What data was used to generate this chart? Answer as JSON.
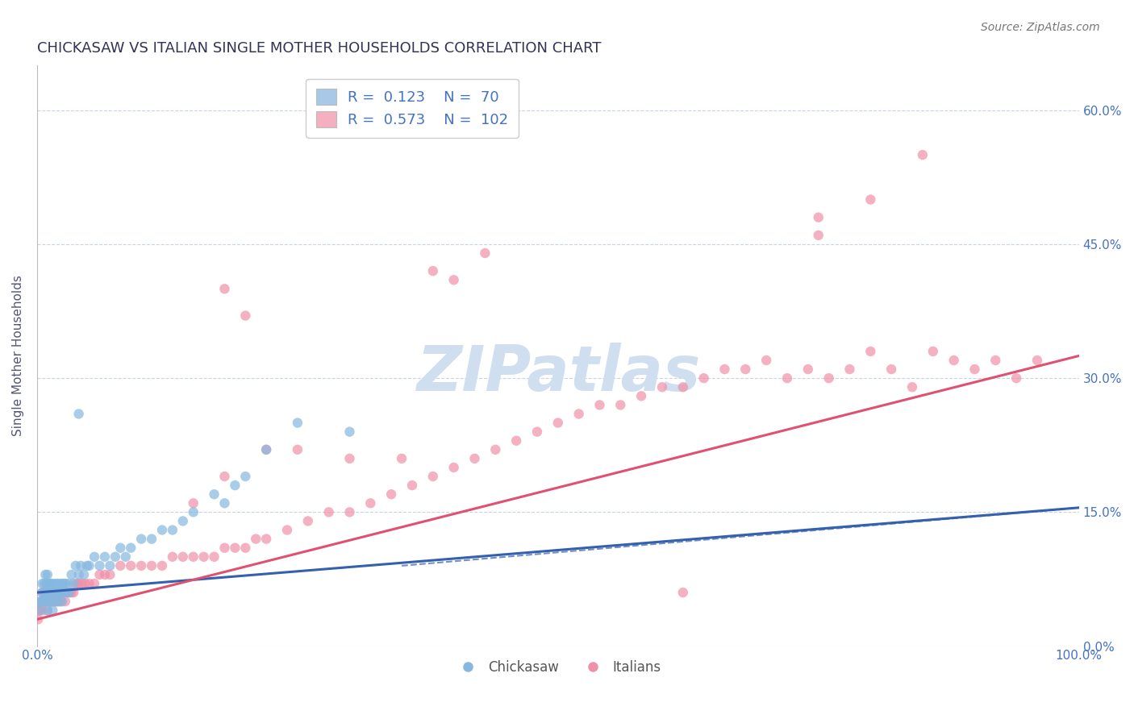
{
  "title": "CHICKASAW VS ITALIAN SINGLE MOTHER HOUSEHOLDS CORRELATION CHART",
  "source": "Source: ZipAtlas.com",
  "ylabel": "Single Mother Households",
  "xlim": [
    0.0,
    1.0
  ],
  "ylim": [
    0.0,
    0.65
  ],
  "yticks": [
    0.0,
    0.15,
    0.3,
    0.45,
    0.6
  ],
  "ytick_labels": [
    "0.0%",
    "15.0%",
    "30.0%",
    "45.0%",
    "60.0%"
  ],
  "xtick_labels": [
    "0.0%",
    "100.0%"
  ],
  "chickasaw_color": "#85b8e0",
  "italian_color": "#f090a8",
  "chickasaw_line_color": "#3560b0",
  "italian_line_color": "#e05070",
  "watermark_color": "#d0dff0",
  "title_color": "#333355",
  "axis_label_color": "#555577",
  "tick_label_color": "#4472c4",
  "grid_color": "#c8d4e4",
  "legend_text_color": "#4472c4",
  "legend_box_color_1": "#a8c8e8",
  "legend_box_color_2": "#f4b0c0",
  "chickasaw_scatter": {
    "x": [
      0.002,
      0.003,
      0.004,
      0.005,
      0.005,
      0.006,
      0.007,
      0.007,
      0.008,
      0.008,
      0.009,
      0.009,
      0.01,
      0.01,
      0.01,
      0.011,
      0.012,
      0.012,
      0.013,
      0.013,
      0.014,
      0.015,
      0.015,
      0.016,
      0.017,
      0.018,
      0.018,
      0.019,
      0.02,
      0.02,
      0.021,
      0.022,
      0.023,
      0.024,
      0.025,
      0.026,
      0.027,
      0.028,
      0.03,
      0.031,
      0.033,
      0.035,
      0.037,
      0.04,
      0.042,
      0.045,
      0.048,
      0.05,
      0.055,
      0.06,
      0.065,
      0.07,
      0.075,
      0.08,
      0.085,
      0.09,
      0.1,
      0.11,
      0.12,
      0.13,
      0.14,
      0.15,
      0.17,
      0.18,
      0.19,
      0.2,
      0.22,
      0.25,
      0.3,
      0.04
    ],
    "y": [
      0.04,
      0.05,
      0.05,
      0.06,
      0.07,
      0.05,
      0.06,
      0.07,
      0.05,
      0.08,
      0.06,
      0.07,
      0.04,
      0.06,
      0.08,
      0.06,
      0.05,
      0.07,
      0.05,
      0.07,
      0.06,
      0.04,
      0.07,
      0.06,
      0.05,
      0.06,
      0.07,
      0.06,
      0.05,
      0.07,
      0.06,
      0.06,
      0.07,
      0.05,
      0.07,
      0.06,
      0.07,
      0.06,
      0.07,
      0.06,
      0.08,
      0.07,
      0.09,
      0.08,
      0.09,
      0.08,
      0.09,
      0.09,
      0.1,
      0.09,
      0.1,
      0.09,
      0.1,
      0.11,
      0.1,
      0.11,
      0.12,
      0.12,
      0.13,
      0.13,
      0.14,
      0.15,
      0.17,
      0.16,
      0.18,
      0.19,
      0.22,
      0.25,
      0.24,
      0.26
    ]
  },
  "italian_scatter": {
    "x": [
      0.001,
      0.002,
      0.003,
      0.004,
      0.005,
      0.005,
      0.006,
      0.007,
      0.007,
      0.008,
      0.009,
      0.009,
      0.01,
      0.01,
      0.011,
      0.012,
      0.013,
      0.014,
      0.015,
      0.016,
      0.017,
      0.018,
      0.019,
      0.02,
      0.021,
      0.022,
      0.023,
      0.025,
      0.027,
      0.029,
      0.031,
      0.033,
      0.035,
      0.038,
      0.04,
      0.043,
      0.046,
      0.05,
      0.055,
      0.06,
      0.065,
      0.07,
      0.08,
      0.09,
      0.1,
      0.11,
      0.12,
      0.13,
      0.14,
      0.15,
      0.16,
      0.17,
      0.18,
      0.19,
      0.2,
      0.21,
      0.22,
      0.24,
      0.26,
      0.28,
      0.3,
      0.32,
      0.34,
      0.36,
      0.38,
      0.4,
      0.42,
      0.44,
      0.46,
      0.48,
      0.5,
      0.52,
      0.54,
      0.56,
      0.58,
      0.6,
      0.62,
      0.64,
      0.66,
      0.68,
      0.7,
      0.72,
      0.74,
      0.76,
      0.78,
      0.8,
      0.82,
      0.84,
      0.86,
      0.88,
      0.9,
      0.92,
      0.94,
      0.96,
      0.15,
      0.18,
      0.22,
      0.25,
      0.3,
      0.35,
      0.62,
      0.75
    ],
    "y": [
      0.03,
      0.04,
      0.04,
      0.05,
      0.04,
      0.06,
      0.05,
      0.05,
      0.06,
      0.05,
      0.05,
      0.06,
      0.04,
      0.06,
      0.05,
      0.05,
      0.06,
      0.05,
      0.05,
      0.06,
      0.05,
      0.06,
      0.05,
      0.06,
      0.05,
      0.06,
      0.05,
      0.06,
      0.05,
      0.06,
      0.06,
      0.06,
      0.06,
      0.07,
      0.07,
      0.07,
      0.07,
      0.07,
      0.07,
      0.08,
      0.08,
      0.08,
      0.09,
      0.09,
      0.09,
      0.09,
      0.09,
      0.1,
      0.1,
      0.1,
      0.1,
      0.1,
      0.11,
      0.11,
      0.11,
      0.12,
      0.12,
      0.13,
      0.14,
      0.15,
      0.15,
      0.16,
      0.17,
      0.18,
      0.19,
      0.2,
      0.21,
      0.22,
      0.23,
      0.24,
      0.25,
      0.26,
      0.27,
      0.27,
      0.28,
      0.29,
      0.29,
      0.3,
      0.31,
      0.31,
      0.32,
      0.3,
      0.31,
      0.3,
      0.31,
      0.33,
      0.31,
      0.29,
      0.33,
      0.32,
      0.31,
      0.32,
      0.3,
      0.32,
      0.16,
      0.19,
      0.22,
      0.22,
      0.21,
      0.21,
      0.06,
      0.46
    ]
  },
  "italian_outliers": {
    "x": [
      0.38,
      0.4,
      0.43,
      0.75,
      0.8,
      0.85,
      0.18,
      0.2
    ],
    "y": [
      0.42,
      0.41,
      0.44,
      0.48,
      0.5,
      0.55,
      0.4,
      0.37
    ]
  },
  "chickasaw_line": {
    "x0": 0.0,
    "x1": 1.0,
    "y0": 0.06,
    "y1": 0.155
  },
  "italian_line": {
    "x0": 0.0,
    "x1": 1.0,
    "y0": 0.03,
    "y1": 0.325
  }
}
